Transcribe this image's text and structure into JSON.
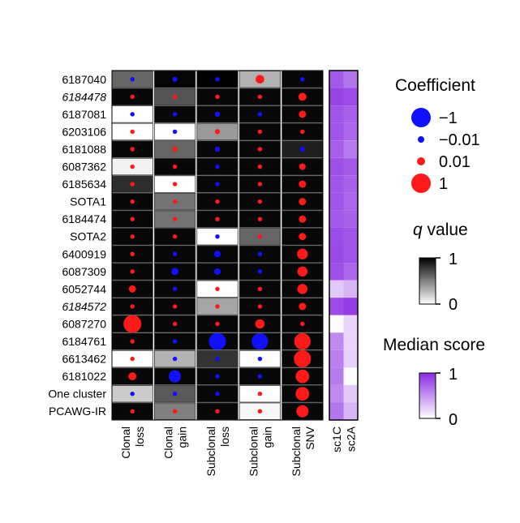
{
  "chart_data": [
    {
      "type": "heatmap",
      "row_labels": [
        "6187040",
        "6184478",
        "6187081",
        "6203106",
        "6181088",
        "6087362",
        "6185634",
        "SOTA1",
        "6184474",
        "SOTA2",
        "6400919",
        "6087309",
        "6052744",
        "6184572",
        "6087270",
        "6184761",
        "6613462",
        "6181022",
        "One cluster",
        "PCAWG-IR"
      ],
      "italic_rows": [
        "6184478",
        "6184572"
      ],
      "columns": [
        {
          "line1": "Clonal",
          "line2": "loss"
        },
        {
          "line1": "Clonal",
          "line2": "gain"
        },
        {
          "line1": "Subclonal",
          "line2": "loss"
        },
        {
          "line1": "Subclonal",
          "line2": "gain"
        },
        {
          "line1": "Subclonal",
          "line2": "SNV"
        }
      ],
      "cell_encoding": "background gray = q value (black 0, white 1); dot color red = positive coefficient, blue = negative; dot size = |coefficient|",
      "q_values": [
        [
          0.4,
          0.02,
          0.0,
          0.7,
          0.03
        ],
        [
          0.03,
          0.33,
          0.03,
          0.03,
          0.03
        ],
        [
          1.0,
          0.03,
          0.03,
          0.03,
          0.03
        ],
        [
          1.0,
          1.0,
          0.6,
          0.03,
          0.03
        ],
        [
          0.03,
          0.4,
          0.03,
          0.03,
          0.12
        ],
        [
          0.95,
          0.03,
          0.03,
          0.03,
          0.03
        ],
        [
          0.18,
          1.0,
          0.03,
          0.03,
          0.03
        ],
        [
          0.03,
          0.45,
          0.03,
          0.03,
          0.03
        ],
        [
          0.03,
          0.45,
          0.03,
          0.03,
          0.03
        ],
        [
          0.03,
          0.03,
          1.0,
          0.4,
          0.03
        ],
        [
          0.03,
          0.03,
          0.03,
          0.03,
          0.03
        ],
        [
          0.03,
          0.03,
          0.03,
          0.03,
          0.03
        ],
        [
          0.03,
          0.03,
          1.0,
          0.03,
          0.03
        ],
        [
          0.03,
          0.03,
          0.65,
          0.03,
          0.03
        ],
        [
          0.03,
          0.03,
          0.03,
          0.03,
          0.03
        ],
        [
          0.03,
          0.03,
          0.03,
          0.03,
          0.03
        ],
        [
          1.0,
          0.7,
          0.2,
          1.0,
          0.03
        ],
        [
          0.03,
          0.03,
          0.03,
          0.03,
          0.03
        ],
        [
          0.8,
          0.35,
          0.03,
          1.0,
          0.03
        ],
        [
          0.03,
          0.5,
          0.03,
          0.97,
          0.03
        ]
      ],
      "coefficients": [
        [
          -0.05,
          -0.1,
          -0.05,
          0.35,
          -0.05
        ],
        [
          0.05,
          0.05,
          0.05,
          0.05,
          0.3
        ],
        [
          -0.05,
          -0.05,
          -0.1,
          -0.05,
          0.25
        ],
        [
          0.05,
          -0.05,
          0.1,
          0.05,
          0.05
        ],
        [
          0.05,
          0.1,
          -0.1,
          0.05,
          -0.1
        ],
        [
          0.05,
          0.05,
          -0.05,
          0.05,
          0.2
        ],
        [
          0.05,
          0.05,
          -0.05,
          0.05,
          0.25
        ],
        [
          0.05,
          0.05,
          0.05,
          0.05,
          0.25
        ],
        [
          0.05,
          0.05,
          0.05,
          0.05,
          0.25
        ],
        [
          0.05,
          0.05,
          -0.05,
          0.05,
          0.25
        ],
        [
          0.05,
          -0.05,
          -0.2,
          -0.05,
          0.5
        ],
        [
          0.05,
          -0.25,
          -0.2,
          -0.05,
          0.45
        ],
        [
          0.25,
          -0.05,
          0.05,
          0.05,
          0.45
        ],
        [
          0.05,
          0.05,
          0.05,
          0.05,
          0.25
        ],
        [
          1.0,
          0.05,
          0.05,
          0.4,
          0.05
        ],
        [
          0.05,
          -0.05,
          -0.95,
          -0.9,
          0.9
        ],
        [
          0.05,
          -0.05,
          -0.05,
          -0.05,
          0.95
        ],
        [
          0.3,
          -0.6,
          -0.05,
          -0.05,
          0.7
        ],
        [
          -0.05,
          -0.05,
          -0.05,
          0.05,
          0.7
        ],
        [
          0.05,
          0.05,
          0.05,
          0.05,
          0.6
        ]
      ]
    },
    {
      "type": "heatmap",
      "columns": [
        "sc1C",
        "sc2A"
      ],
      "cell_encoding": "white (0) to purple (1) = median score",
      "median_scores": [
        [
          0.78,
          0.65
        ],
        [
          0.88,
          0.85
        ],
        [
          0.8,
          0.75
        ],
        [
          0.8,
          0.72
        ],
        [
          0.76,
          0.62
        ],
        [
          0.82,
          0.78
        ],
        [
          0.8,
          0.75
        ],
        [
          0.8,
          0.72
        ],
        [
          0.78,
          0.74
        ],
        [
          0.84,
          0.8
        ],
        [
          0.86,
          0.8
        ],
        [
          0.82,
          0.72
        ],
        [
          0.25,
          0.35
        ],
        [
          0.85,
          0.92
        ],
        [
          0.02,
          0.2
        ],
        [
          0.55,
          0.2
        ],
        [
          0.6,
          0.22
        ],
        [
          0.62,
          0.02
        ],
        [
          0.55,
          0.25
        ],
        [
          0.65,
          0.35
        ]
      ]
    }
  ],
  "legend": {
    "coefficient": {
      "title": "Coefficient",
      "entries": [
        {
          "label": "−1",
          "value": -1,
          "color": "#1010ff"
        },
        {
          "label": "−0.01",
          "value": -0.01,
          "color": "#1010ff"
        },
        {
          "label": "0.01",
          "value": 0.01,
          "color": "#ff1a1a"
        },
        {
          "label": "1",
          "value": 1,
          "color": "#ff1a1a"
        }
      ]
    },
    "q_value": {
      "title_italic": "q",
      "title_rest": " value",
      "max_label": "1",
      "min_label": "0"
    },
    "median_score": {
      "title": "Median score",
      "max_label": "1",
      "min_label": "0"
    }
  },
  "colors": {
    "positive": "#ff1a1a",
    "negative": "#1010ff",
    "purple": "#8a2be2"
  }
}
